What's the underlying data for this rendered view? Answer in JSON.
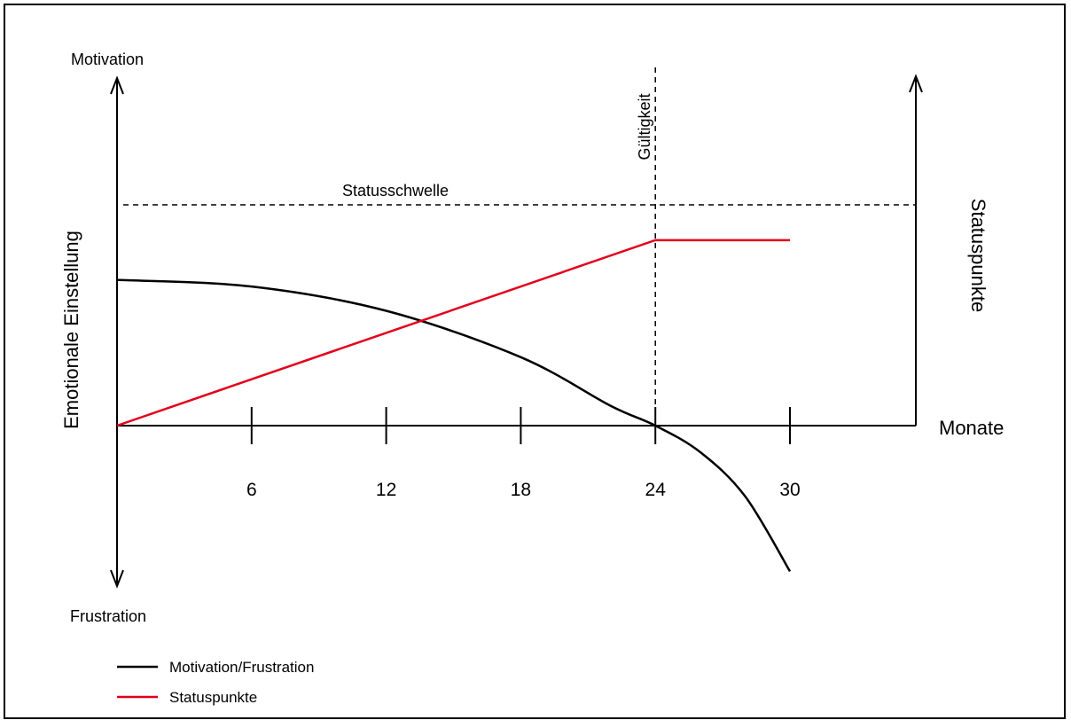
{
  "chart_data": {
    "type": "line",
    "ylabel_left": "Emotionale Einstellung",
    "ylabel_right": "Statuspunkte",
    "xlabel": "Monate",
    "y_top_label": "Motivation",
    "y_bottom_label": "Frustration",
    "xlim": [
      0,
      36
    ],
    "x_ticks": [
      6,
      12,
      18,
      24,
      30
    ],
    "threshold": {
      "label": "Statusschwelle",
      "value": 1.0
    },
    "validity": {
      "label": "Gültigkeit",
      "x": 24
    },
    "series": [
      {
        "name": "Motivation/Frustration",
        "color": "#000000",
        "points": [
          [
            0,
            0.66
          ],
          [
            6,
            0.63
          ],
          [
            12,
            0.52
          ],
          [
            18,
            0.31
          ],
          [
            22,
            0.09
          ],
          [
            24,
            0.0
          ],
          [
            26,
            -0.12
          ],
          [
            28,
            -0.32
          ],
          [
            30,
            -0.66
          ]
        ]
      },
      {
        "name": "Statuspunkte",
        "color": "#e3001b",
        "points": [
          [
            0,
            0.0
          ],
          [
            24,
            0.84
          ],
          [
            30,
            0.84
          ]
        ]
      }
    ],
    "legend": "bottom-left"
  }
}
